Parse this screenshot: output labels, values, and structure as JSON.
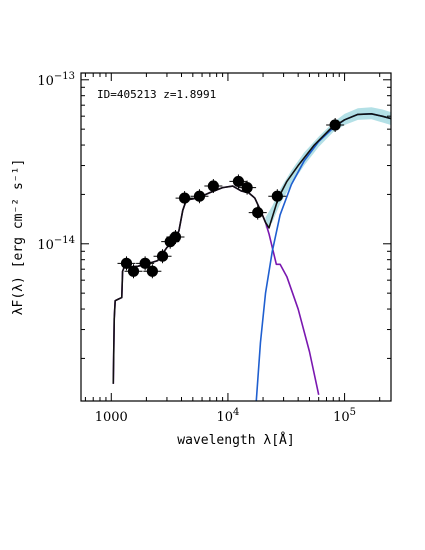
{
  "chart_data": {
    "type": "scatter",
    "annotation": "ID=405213 z=1.8991",
    "xlabel": "wavelength λ[Å]",
    "ylabel": "λF(λ) [erg cm⁻² s⁻¹]",
    "x_scale": "log",
    "y_scale": "log",
    "xlim": [
      550,
      250000
    ],
    "ylim": [
      1.1e-15,
      1.1e-13
    ],
    "x_ticks": [
      {
        "value": 1000,
        "label": "1000",
        "exp": ""
      },
      {
        "value": 10000,
        "label": "10",
        "exp": "4"
      },
      {
        "value": 100000,
        "label": "10",
        "exp": "5"
      }
    ],
    "y_ticks": [
      {
        "value": 1e-14,
        "label": "10",
        "exp": "−14"
      },
      {
        "value": 1e-13,
        "label": "10",
        "exp": "−13"
      }
    ],
    "colors": {
      "points": "#000000",
      "total_model": "#111111",
      "stellar_component": "#7a18b0",
      "dust_component": "#1f5fd0",
      "uncertainty_band": "#9ad6de"
    },
    "observed_points": [
      {
        "x": 1350,
        "y": 7.6e-15
      },
      {
        "x": 1550,
        "y": 6.8e-15
      },
      {
        "x": 1950,
        "y": 7.6e-15
      },
      {
        "x": 2250,
        "y": 6.8e-15
      },
      {
        "x": 2750,
        "y": 8.4e-15
      },
      {
        "x": 3200,
        "y": 1.03e-14
      },
      {
        "x": 3550,
        "y": 1.1e-14
      },
      {
        "x": 4250,
        "y": 1.9e-14
      },
      {
        "x": 5700,
        "y": 1.95e-14
      },
      {
        "x": 7500,
        "y": 2.25e-14
      },
      {
        "x": 12300,
        "y": 2.4e-14
      },
      {
        "x": 14600,
        "y": 2.2e-14
      },
      {
        "x": 18000,
        "y": 1.55e-14
      },
      {
        "x": 26500,
        "y": 1.95e-14
      },
      {
        "x": 83000,
        "y": 5.3e-14
      }
    ],
    "series": [
      {
        "points": [
          [
            1040,
            1.4e-15
          ],
          [
            1060,
            3.5e-15
          ],
          [
            1080,
            4.5e-15
          ],
          [
            1150,
            4.6e-15
          ],
          [
            1230,
            4.7e-15
          ],
          [
            1250,
            6.8e-15
          ],
          [
            1300,
            7.3e-15
          ],
          [
            1450,
            7.2e-15
          ],
          [
            1700,
            7.3e-15
          ],
          [
            2100,
            7.6e-15
          ],
          [
            2500,
            7.9e-15
          ],
          [
            3000,
            9.5e-15
          ],
          [
            3500,
            1.05e-14
          ],
          [
            3800,
            1.2e-14
          ],
          [
            4100,
            1.6e-14
          ],
          [
            4400,
            1.85e-14
          ],
          [
            5500,
            1.9e-14
          ],
          [
            7000,
            2.05e-14
          ],
          [
            9000,
            2.2e-14
          ],
          [
            11000,
            2.25e-14
          ],
          [
            13000,
            2.1e-14
          ],
          [
            15000,
            2.05e-14
          ],
          [
            17000,
            1.9e-14
          ],
          [
            19000,
            1.6e-14
          ],
          [
            21000,
            1.35e-14
          ],
          [
            22500,
            1.25e-14
          ],
          [
            24000,
            1.45e-14
          ],
          [
            27000,
            1.9e-14
          ],
          [
            32000,
            2.4e-14
          ],
          [
            40000,
            3e-14
          ],
          [
            55000,
            4e-14
          ],
          [
            75000,
            5e-14
          ],
          [
            100000,
            5.7e-14
          ],
          [
            130000,
            6.15e-14
          ],
          [
            170000,
            6.2e-14
          ],
          [
            210000,
            6e-14
          ],
          [
            250000,
            5.8e-14
          ]
        ]
      },
      {
        "points": [
          [
            1040,
            1.4e-15
          ],
          [
            1060,
            3.5e-15
          ],
          [
            1080,
            4.5e-15
          ],
          [
            1150,
            4.6e-15
          ],
          [
            1230,
            4.7e-15
          ],
          [
            1250,
            6.8e-15
          ],
          [
            1300,
            7.3e-15
          ],
          [
            1450,
            7.2e-15
          ],
          [
            1700,
            7.3e-15
          ],
          [
            2100,
            7.6e-15
          ],
          [
            2500,
            7.9e-15
          ],
          [
            3000,
            9.5e-15
          ],
          [
            3500,
            1.05e-14
          ],
          [
            3800,
            1.2e-14
          ],
          [
            4100,
            1.6e-14
          ],
          [
            4400,
            1.85e-14
          ],
          [
            5500,
            1.9e-14
          ],
          [
            7000,
            2.05e-14
          ],
          [
            9000,
            2.2e-14
          ],
          [
            11000,
            2.25e-14
          ],
          [
            13000,
            2.1e-14
          ],
          [
            15000,
            2.05e-14
          ],
          [
            17000,
            1.9e-14
          ],
          [
            19000,
            1.6e-14
          ],
          [
            21000,
            1.35e-14
          ],
          [
            22500,
            1.15e-14
          ],
          [
            24000,
            9.5e-15
          ],
          [
            26000,
            7.5e-15
          ],
          [
            28000,
            7.5e-15
          ],
          [
            32000,
            6.3e-15
          ],
          [
            40000,
            4e-15
          ],
          [
            50000,
            2.2e-15
          ],
          [
            60000,
            1.2e-15
          ]
        ]
      },
      {
        "points": [
          [
            17500,
            1.1e-15
          ],
          [
            19000,
            2.5e-15
          ],
          [
            21000,
            5e-15
          ],
          [
            24000,
            9e-15
          ],
          [
            28000,
            1.5e-14
          ],
          [
            35000,
            2.3e-14
          ],
          [
            45000,
            3.2e-14
          ],
          [
            60000,
            4.2e-14
          ],
          [
            80000,
            5.1e-14
          ],
          [
            100000,
            5.7e-14
          ],
          [
            130000,
            6.15e-14
          ],
          [
            170000,
            6.2e-14
          ],
          [
            210000,
            6e-14
          ],
          [
            250000,
            5.8e-14
          ]
        ]
      }
    ],
    "band": {
      "upper": [
        [
          21000,
          1.45e-14
        ],
        [
          24000,
          1.7e-14
        ],
        [
          28000,
          2.15e-14
        ],
        [
          35000,
          2.8e-14
        ],
        [
          45000,
          3.6e-14
        ],
        [
          60000,
          4.5e-14
        ],
        [
          80000,
          5.5e-14
        ],
        [
          100000,
          6.2e-14
        ],
        [
          130000,
          6.7e-14
        ],
        [
          170000,
          6.8e-14
        ],
        [
          210000,
          6.6e-14
        ],
        [
          250000,
          6.35e-14
        ]
      ],
      "lower": [
        [
          21000,
          1.25e-14
        ],
        [
          24000,
          1.35e-14
        ],
        [
          28000,
          1.75e-14
        ],
        [
          35000,
          2.3e-14
        ],
        [
          45000,
          3e-14
        ],
        [
          60000,
          3.9e-14
        ],
        [
          80000,
          4.8e-14
        ],
        [
          100000,
          5.3e-14
        ],
        [
          130000,
          5.7e-14
        ],
        [
          170000,
          5.75e-14
        ],
        [
          210000,
          5.5e-14
        ],
        [
          250000,
          5.3e-14
        ]
      ]
    }
  }
}
